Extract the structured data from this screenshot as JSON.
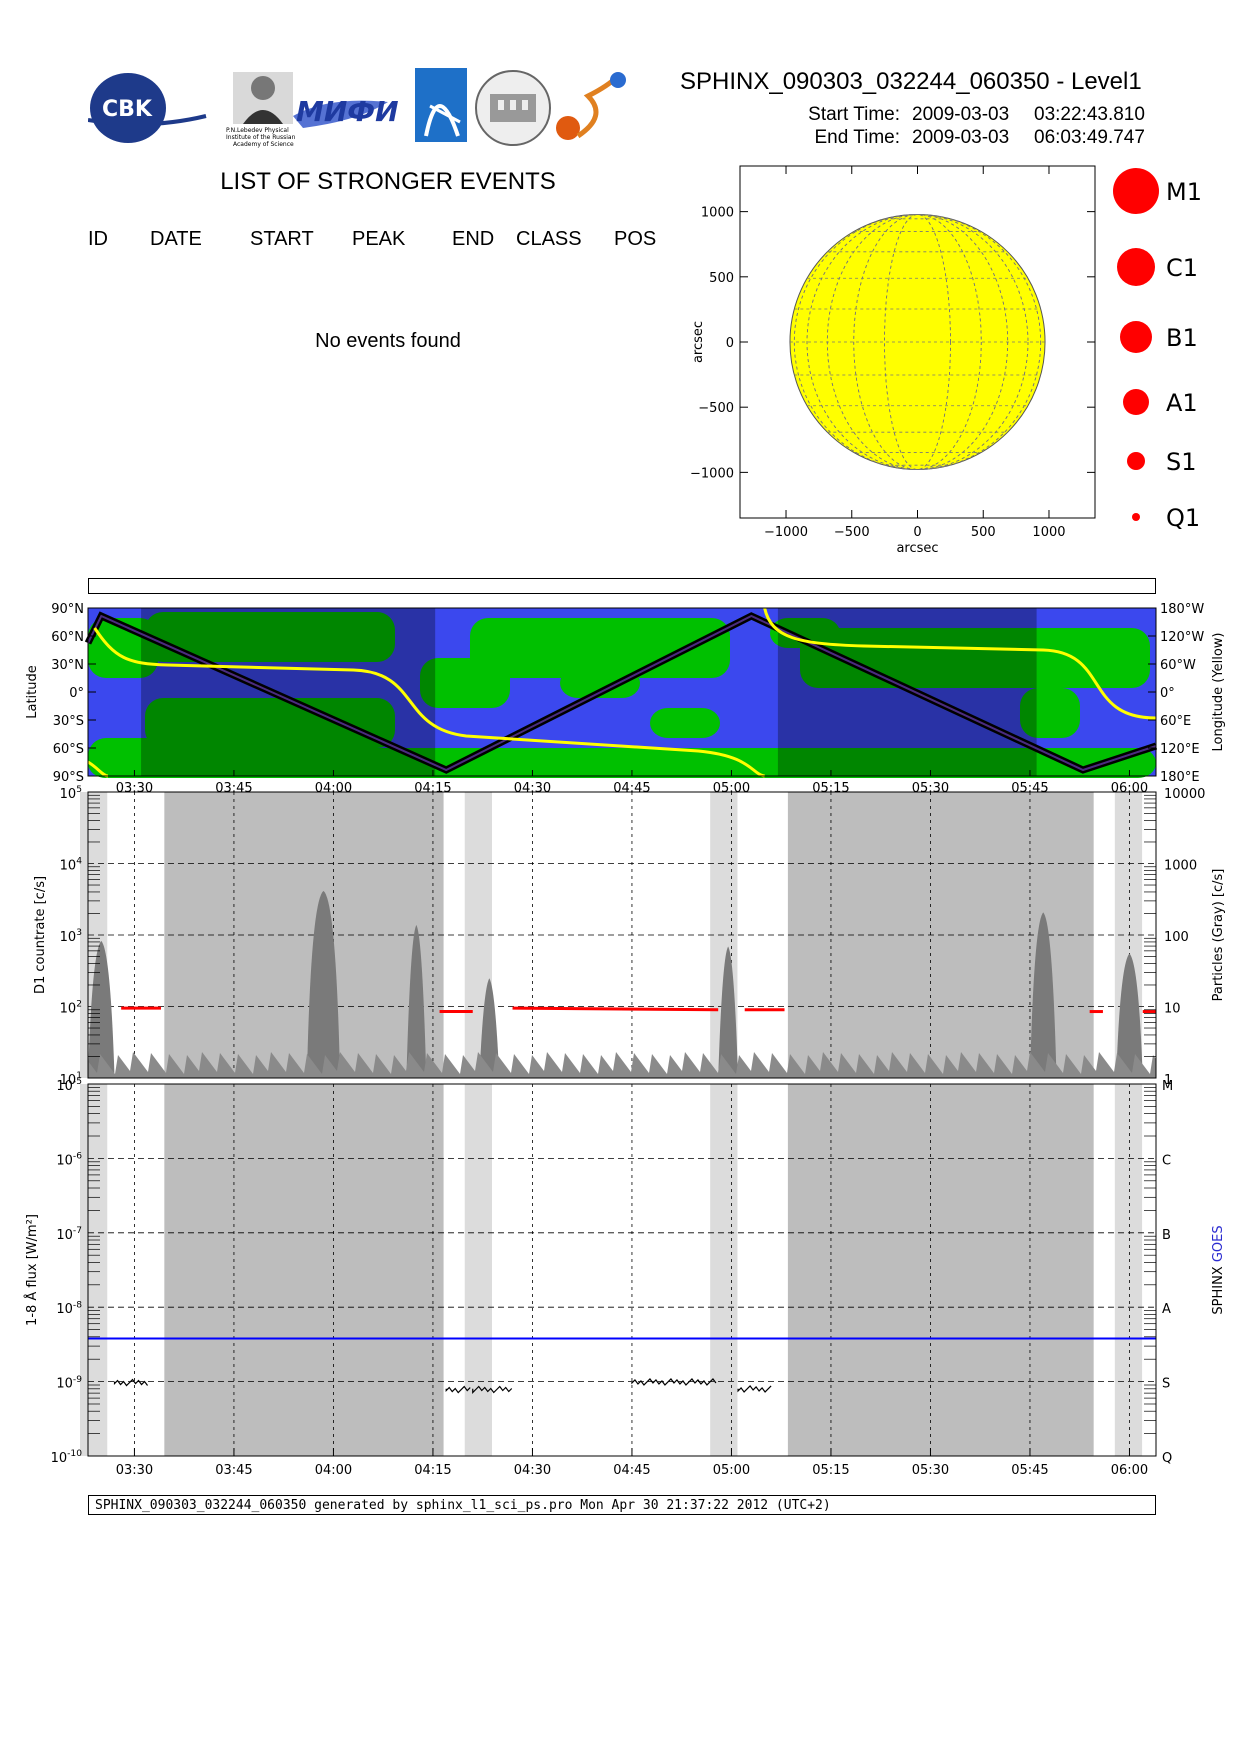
{
  "header": {
    "title": "SPHINX_090303_032244_060350 - Level1",
    "start_label": "Start Time:",
    "start_date": "2009-03-03",
    "start_time": "03:22:43.810",
    "end_label": "End Time:",
    "end_date": "2009-03-03",
    "end_time": "06:03:49.747",
    "logos": [
      "CBK PAN",
      "P.N.Lebedev Physical Institute of the Russian Academy of Science",
      "MIFI",
      "logo-4",
      "logo-5",
      "logo-6"
    ]
  },
  "events": {
    "title": "LIST OF STRONGER EVENTS",
    "columns": [
      "ID",
      "DATE",
      "START",
      "PEAK",
      "END",
      "CLASS",
      "POS"
    ],
    "empty_message": "No events found"
  },
  "legend": {
    "classes": [
      "M1",
      "C1",
      "B1",
      "A1",
      "S1",
      "Q1"
    ],
    "color": "#ff0000"
  },
  "footer": {
    "text": "SPHINX_090303_032244_060350 generated by sphinx_l1_sci_ps.pro Mon Apr 30 21:37:22 2012 (UTC+2)"
  },
  "chart_data": [
    {
      "type": "scatter",
      "name": "sun-disk",
      "xlabel": "arcsec",
      "ylabel": "arcsec",
      "xlim": [
        -1350,
        1350
      ],
      "ylim": [
        -1350,
        1350
      ],
      "xticks": [
        "−1000",
        "−500",
        "0",
        "500",
        "1000"
      ],
      "yticks": [
        "1000",
        "500",
        "0",
        "−500",
        "−1000"
      ],
      "disk_radius": 970,
      "disk_color": "#ffff00",
      "points": []
    },
    {
      "type": "area",
      "name": "orbit-map",
      "ylabel_left": "Latitude",
      "ylabel_right": "Longitude (Yellow)",
      "left_ticks": [
        "90°N",
        "60°N",
        "30°N",
        "0°",
        "30°S",
        "60°S",
        "90°S"
      ],
      "right_ticks": [
        "180°W",
        "120°W",
        "60°W",
        "0°",
        "60°E",
        "120°E",
        "180°E"
      ],
      "x_ticks": [
        "03:30",
        "03:45",
        "04:00",
        "04:15",
        "04:30",
        "04:45",
        "05:00",
        "05:15",
        "05:30",
        "05:45",
        "06:00"
      ],
      "colors": {
        "ocean": "#3b48ee",
        "land": "#00c000",
        "night_ocean": "#1d2aa6",
        "night_land": "#008a00",
        "track": "#000000",
        "longitude": "#ffff00"
      }
    },
    {
      "type": "line",
      "name": "d1-countrate",
      "ylabel_left": "D1 countrate [c/s]",
      "ylabel_right": "Particles (Gray) [c/s]",
      "yscale": "log",
      "ylim": [
        10,
        100000
      ],
      "left_ticks": [
        "10^5",
        "10^4",
        "10^3",
        "10^2",
        "10^1"
      ],
      "right_ticks": [
        "10000",
        "1000",
        "100",
        "10",
        "1"
      ],
      "x_ticks": [
        "03:30",
        "03:45",
        "04:00",
        "04:15",
        "04:30",
        "04:45",
        "05:00",
        "05:15",
        "05:30",
        "05:45",
        "06:00"
      ],
      "series": [
        {
          "color": "#ff0000",
          "x": [
            "03:28",
            "03:34",
            "04:16",
            "04:21",
            "04:27",
            "04:58",
            "05:02",
            "05:08",
            "05:54",
            "05:56",
            "06:02",
            "06:04"
          ],
          "values": [
            95,
            95,
            85,
            85,
            95,
            90,
            90,
            90,
            85,
            85,
            85,
            85
          ]
        }
      ]
    },
    {
      "type": "line",
      "name": "flux",
      "ylabel_left": "1-8 Å flux [W/m²]",
      "ylabel_right": "SPHINX GOES",
      "yscale": "log",
      "ylim": [
        1e-10,
        1e-05
      ],
      "left_ticks": [
        "10^-5",
        "10^-6",
        "10^-7",
        "10^-8",
        "10^-9",
        "10^-10"
      ],
      "right_ticks": [
        "M",
        "C",
        "B",
        "A",
        "S",
        "Q"
      ],
      "x_ticks": [
        "03:30",
        "03:45",
        "04:00",
        "04:15",
        "04:30",
        "04:45",
        "05:00",
        "05:15",
        "05:30",
        "05:45",
        "06:00"
      ],
      "series": [
        {
          "name": "SPHINX",
          "color": "#000000",
          "x": [
            "03:27",
            "03:32",
            "04:17",
            "04:21",
            "04:27",
            "04:45",
            "04:58",
            "05:01",
            "05:06"
          ],
          "values": [
            1e-09,
            1e-09,
            8e-10,
            8e-10,
            9e-10,
            1e-09,
            8e-10,
            8e-10,
            8e-10
          ]
        },
        {
          "name": "GOES",
          "color": "#0000ff",
          "x": [
            "03:23",
            "06:04"
          ],
          "values": [
            3.8e-09,
            3.8e-09
          ]
        }
      ]
    }
  ]
}
